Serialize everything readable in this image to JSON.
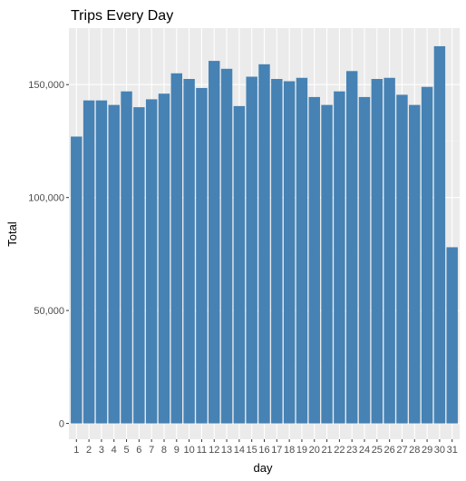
{
  "chart_data": {
    "type": "bar",
    "title": "Trips Every Day",
    "xlabel": "day",
    "ylabel": "Total",
    "categories": [
      "1",
      "2",
      "3",
      "4",
      "5",
      "6",
      "7",
      "8",
      "9",
      "10",
      "11",
      "12",
      "13",
      "14",
      "15",
      "16",
      "17",
      "18",
      "19",
      "20",
      "21",
      "22",
      "23",
      "24",
      "25",
      "26",
      "27",
      "28",
      "29",
      "30",
      "31"
    ],
    "values": [
      127000,
      143000,
      143000,
      141000,
      147000,
      140000,
      143500,
      146000,
      155000,
      152500,
      148500,
      160500,
      157000,
      140500,
      153500,
      159000,
      152500,
      151500,
      153000,
      144500,
      141000,
      147000,
      156000,
      144500,
      152500,
      153000,
      145500,
      141000,
      149000,
      167000,
      78000
    ],
    "y_ticks": [
      0,
      50000,
      100000,
      150000
    ],
    "y_tick_labels": [
      "0",
      "50,000",
      "100,000",
      "150,000"
    ],
    "ylim": [
      -7000,
      175000
    ],
    "grid": true,
    "legend": "none",
    "colors": {
      "bar": "#4682B4",
      "panel": "#EBEBEB",
      "grid_major": "#FFFFFF",
      "grid_minor": "#F4F4F4",
      "tick_text": "#4D4D4D",
      "text": "#000000"
    }
  }
}
